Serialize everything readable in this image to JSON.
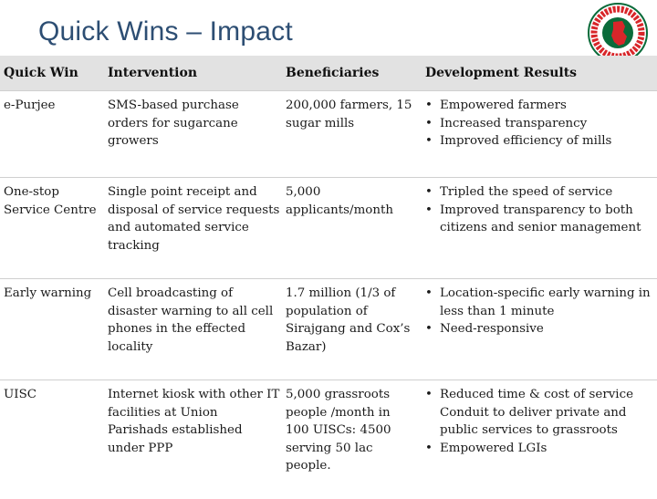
{
  "slide": {
    "title": "Quick Wins – Impact"
  },
  "logo": {
    "emblem": "bangladesh-government-seal",
    "colors": {
      "green": "#0a6b3a",
      "red": "#d8262a",
      "white": "#ffffff"
    }
  },
  "table": {
    "headers": [
      "Quick Win",
      "Intervention",
      "Beneficiaries",
      "Development Results"
    ],
    "rows": [
      {
        "quick_win": "e-Purjee",
        "intervention": "SMS-based purchase orders for sugarcane growers",
        "beneficiaries": "200,000 farmers, 15 sugar mills",
        "results": [
          "Empowered farmers",
          "Increased transparency",
          "Improved efficiency of mills"
        ]
      },
      {
        "quick_win": "One-stop Service Centre",
        "intervention": "Single point receipt and disposal of service requests and automated service tracking",
        "beneficiaries": "5,000 applicants/month",
        "results": [
          "Tripled the speed of service",
          "Improved transparency to both citizens and senior management"
        ]
      },
      {
        "quick_win": "Early warning",
        "intervention": "Cell broadcasting of disaster warning to all cell phones in the effected locality",
        "beneficiaries": "1.7 million (1/3 of population of Sirajgang and Cox’s Bazar)",
        "results": [
          "Location-specific early warning in less than 1 minute",
          "Need-responsive"
        ]
      },
      {
        "quick_win": "UISC",
        "intervention": "Internet kiosk with other IT facilities at Union Parishads established under PPP",
        "beneficiaries": "5,000 grassroots people /month in 100 UISCs: 4500 serving 50 lac people.",
        "results": [
          "Reduced time & cost of service Conduit to deliver private and public services to grassroots",
          "Empowered LGIs"
        ]
      }
    ]
  },
  "colors": {
    "title": "#2d4e73",
    "header_bg": "#e2e2e2",
    "row_border": "#cfcfcf"
  }
}
